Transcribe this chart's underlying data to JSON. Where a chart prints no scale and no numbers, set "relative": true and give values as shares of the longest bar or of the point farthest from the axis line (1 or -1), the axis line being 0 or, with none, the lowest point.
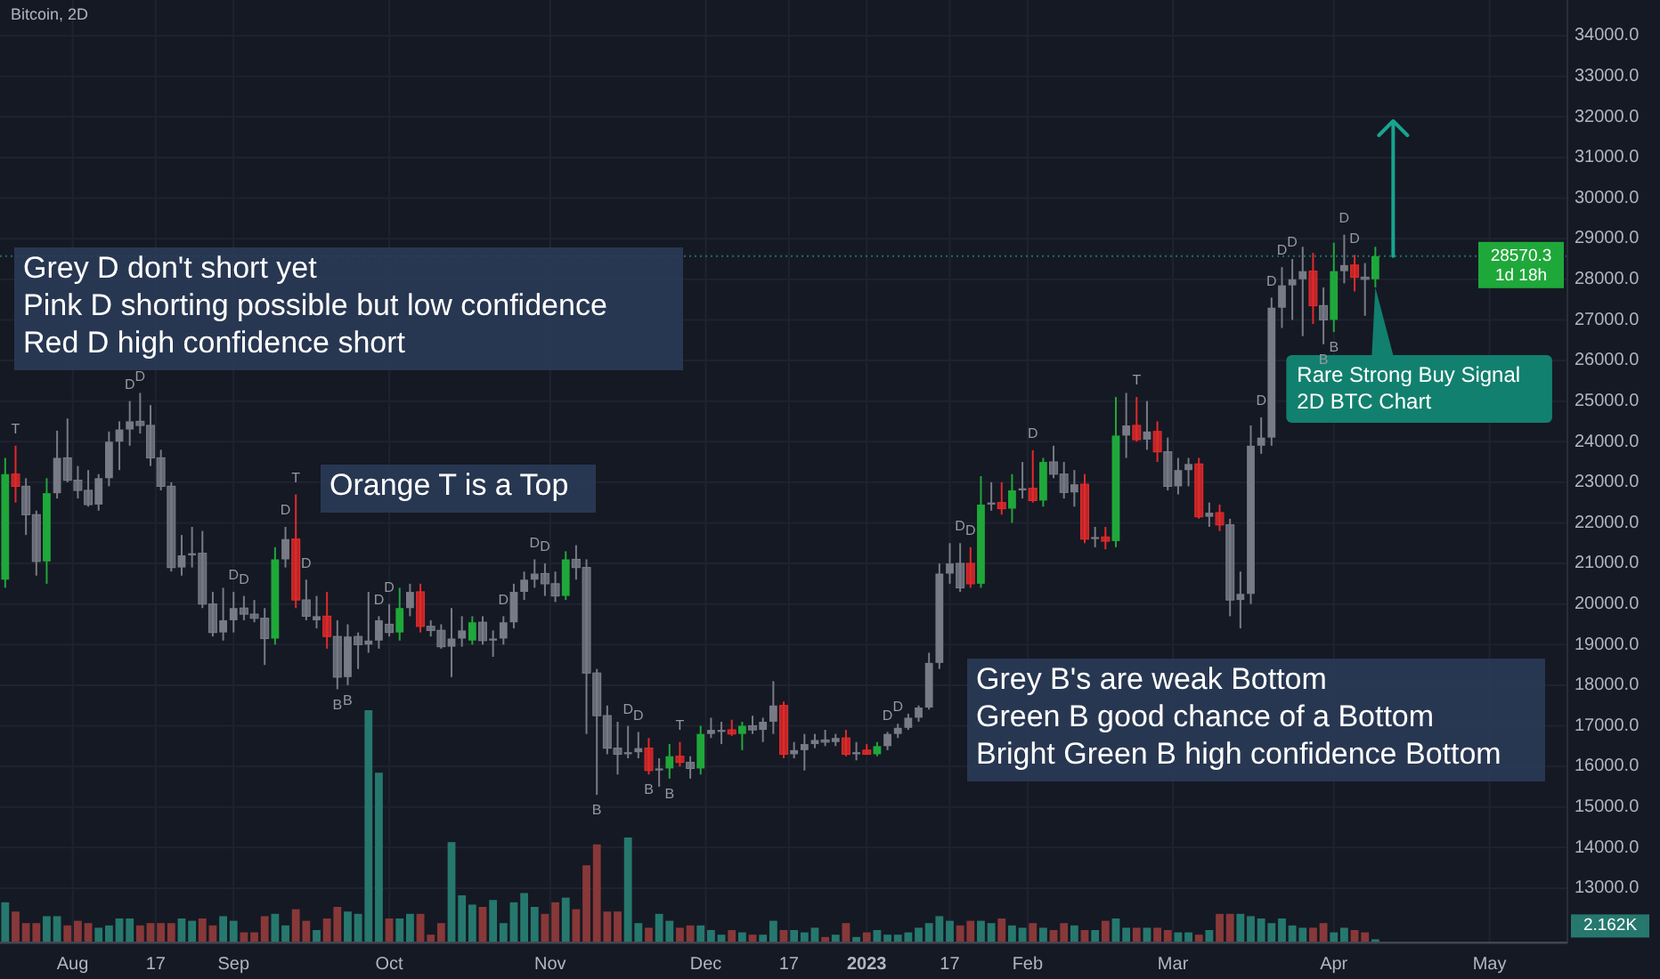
{
  "chart_data": [
    {
      "type": "candlestick",
      "title": "Bitcoin, 2D",
      "x": [
        "2022-07-19",
        "2022-07-21",
        "2022-07-23",
        "2022-07-25",
        "2022-07-27",
        "2022-07-29",
        "2022-07-31",
        "2022-08-02",
        "2022-08-04",
        "2022-08-06",
        "2022-08-08",
        "2022-08-10",
        "2022-08-12",
        "2022-08-14",
        "2022-08-16",
        "2022-08-18",
        "2022-08-20",
        "2022-08-22",
        "2022-08-24",
        "2022-08-26",
        "2022-08-28",
        "2022-08-30",
        "2022-09-01",
        "2022-09-03",
        "2022-09-05",
        "2022-09-07",
        "2022-09-09",
        "2022-09-11",
        "2022-09-13",
        "2022-09-15",
        "2022-09-17",
        "2022-09-19",
        "2022-09-21",
        "2022-09-23",
        "2022-09-25",
        "2022-09-27",
        "2022-09-29",
        "2022-10-01",
        "2022-10-03",
        "2022-10-05",
        "2022-10-07",
        "2022-10-09",
        "2022-10-11",
        "2022-10-13",
        "2022-10-15",
        "2022-10-17",
        "2022-10-19",
        "2022-10-21",
        "2022-10-23",
        "2022-10-25",
        "2022-10-27",
        "2022-10-29",
        "2022-10-31",
        "2022-11-02",
        "2022-11-04",
        "2022-11-06",
        "2022-11-08",
        "2022-11-10",
        "2022-11-12",
        "2022-11-14",
        "2022-11-16",
        "2022-11-18",
        "2022-11-20",
        "2022-11-22",
        "2022-11-24",
        "2022-11-26",
        "2022-11-28",
        "2022-11-30",
        "2022-12-02",
        "2022-12-04",
        "2022-12-06",
        "2022-12-08",
        "2022-12-10",
        "2022-12-12",
        "2022-12-14",
        "2022-12-16",
        "2022-12-18",
        "2022-12-20",
        "2022-12-22",
        "2022-12-24",
        "2022-12-26",
        "2022-12-28",
        "2022-12-30",
        "2023-01-01",
        "2023-01-03",
        "2023-01-05",
        "2023-01-07",
        "2023-01-09",
        "2023-01-11",
        "2023-01-13",
        "2023-01-15",
        "2023-01-17",
        "2023-01-19",
        "2023-01-21",
        "2023-01-23",
        "2023-01-25",
        "2023-01-27",
        "2023-01-29",
        "2023-01-31",
        "2023-02-02",
        "2023-02-04",
        "2023-02-06",
        "2023-02-08",
        "2023-02-10",
        "2023-02-12",
        "2023-02-14",
        "2023-02-16",
        "2023-02-18",
        "2023-02-20",
        "2023-02-22",
        "2023-02-24",
        "2023-02-26",
        "2023-02-28",
        "2023-03-02",
        "2023-03-04",
        "2023-03-06",
        "2023-03-08",
        "2023-03-10",
        "2023-03-12",
        "2023-03-14",
        "2023-03-16",
        "2023-03-18",
        "2023-03-20",
        "2023-03-22",
        "2023-03-24",
        "2023-03-26",
        "2023-03-28",
        "2023-03-30",
        "2023-04-01",
        "2023-04-03",
        "2023-04-05",
        "2023-04-07",
        "2023-04-09"
      ],
      "ohlc": [
        [
          20600,
          23600,
          20400,
          23200
        ],
        [
          23200,
          23900,
          22500,
          22900
        ],
        [
          22900,
          23100,
          21700,
          22200
        ],
        [
          22200,
          22300,
          20700,
          21050
        ],
        [
          21050,
          23100,
          20500,
          22730
        ],
        [
          22730,
          24270,
          22600,
          23600
        ],
        [
          23600,
          24570,
          23000,
          23050
        ],
        [
          23050,
          23400,
          22600,
          22800
        ],
        [
          22800,
          23300,
          22400,
          22450
        ],
        [
          22450,
          23200,
          22300,
          23100
        ],
        [
          23100,
          24250,
          22900,
          24000
        ],
        [
          24000,
          24500,
          23300,
          24300
        ],
        [
          24300,
          25000,
          23900,
          24500
        ],
        [
          24500,
          25200,
          24200,
          24400
        ],
        [
          24400,
          24900,
          23400,
          23600
        ],
        [
          23600,
          23800,
          22800,
          22900
        ],
        [
          22900,
          23000,
          20800,
          20900
        ],
        [
          20900,
          21700,
          20700,
          21200
        ],
        [
          21200,
          21900,
          20900,
          21250
        ],
        [
          21250,
          21800,
          19900,
          20000
        ],
        [
          20000,
          20300,
          19200,
          19300
        ],
        [
          19300,
          20400,
          19100,
          19600
        ],
        [
          19600,
          20300,
          19300,
          19900
        ],
        [
          19900,
          20200,
          19600,
          19750
        ],
        [
          19750,
          20100,
          19550,
          19650
        ],
        [
          19650,
          19900,
          18500,
          19150
        ],
        [
          19150,
          21400,
          19000,
          21100
        ],
        [
          21100,
          21900,
          20900,
          21600
        ],
        [
          21600,
          22700,
          19900,
          20100
        ],
        [
          20100,
          20600,
          19600,
          19700
        ],
        [
          19600,
          20200,
          19400,
          19700
        ],
        [
          19700,
          20300,
          18900,
          19200
        ],
        [
          19200,
          19600,
          17900,
          18200
        ],
        [
          18200,
          19500,
          18000,
          19200
        ],
        [
          19200,
          19300,
          18400,
          19000
        ],
        [
          19000,
          20300,
          18800,
          19100
        ],
        [
          19100,
          19700,
          18900,
          19600
        ],
        [
          19500,
          20000,
          19200,
          19300
        ],
        [
          19300,
          20400,
          19100,
          19900
        ],
        [
          19900,
          20500,
          19700,
          20300
        ],
        [
          20300,
          20500,
          19300,
          19450
        ],
        [
          19450,
          19600,
          19200,
          19350
        ],
        [
          19350,
          19500,
          18900,
          18950
        ],
        [
          18950,
          19900,
          18200,
          19150
        ],
        [
          19150,
          19700,
          18950,
          19350
        ],
        [
          19100,
          19700,
          19000,
          19550
        ],
        [
          19550,
          19700,
          19000,
          19100
        ],
        [
          19100,
          19350,
          18700,
          19150
        ],
        [
          19150,
          19700,
          19000,
          19550
        ],
        [
          19550,
          20500,
          19400,
          20300
        ],
        [
          20300,
          20800,
          20100,
          20600
        ],
        [
          20600,
          21100,
          20400,
          20750
        ],
        [
          20750,
          21000,
          20200,
          20500
        ],
        [
          20500,
          20800,
          20050,
          20200
        ],
        [
          20200,
          21300,
          20100,
          21100
        ],
        [
          21100,
          21450,
          20600,
          20900
        ],
        [
          20900,
          21100,
          16800,
          18300
        ],
        [
          18300,
          18400,
          15300,
          17250
        ],
        [
          17250,
          17500,
          16300,
          16450
        ],
        [
          16450,
          17100,
          15800,
          16300
        ],
        [
          16300,
          17000,
          16200,
          16350
        ],
        [
          16350,
          16850,
          16200,
          16450
        ],
        [
          16450,
          16700,
          15800,
          15900
        ],
        [
          15900,
          16200,
          15500,
          15950
        ],
        [
          15950,
          16550,
          15700,
          16250
        ],
        [
          16250,
          16600,
          16000,
          16100
        ],
        [
          16100,
          16250,
          15700,
          15950
        ],
        [
          15950,
          17000,
          15800,
          16800
        ],
        [
          16800,
          17200,
          16700,
          16900
        ],
        [
          16850,
          17100,
          16550,
          16900
        ],
        [
          16900,
          17150,
          16750,
          16800
        ],
        [
          16800,
          17100,
          16400,
          17000
        ],
        [
          17000,
          17250,
          16800,
          16900
        ],
        [
          16900,
          17200,
          16600,
          17100
        ],
        [
          17100,
          18100,
          16800,
          17500
        ],
        [
          17500,
          17600,
          16200,
          16300
        ],
        [
          16300,
          16600,
          16200,
          16400
        ],
        [
          16400,
          16800,
          15900,
          16550
        ],
        [
          16550,
          16800,
          16450,
          16650
        ],
        [
          16650,
          16900,
          16500,
          16600
        ],
        [
          16600,
          16800,
          16500,
          16700
        ],
        [
          16700,
          16900,
          16250,
          16300
        ],
        [
          16300,
          16600,
          16150,
          16350
        ],
        [
          16400,
          16550,
          16300,
          16300
        ],
        [
          16300,
          16600,
          16250,
          16500
        ],
        [
          16500,
          16850,
          16400,
          16800
        ],
        [
          16800,
          17050,
          16700,
          16950
        ],
        [
          16950,
          17300,
          16900,
          17200
        ],
        [
          17200,
          17500,
          17100,
          17450
        ],
        [
          17450,
          18800,
          17400,
          18550
        ],
        [
          18550,
          21000,
          18400,
          20750
        ],
        [
          20750,
          21500,
          20500,
          21000
        ],
        [
          21000,
          21500,
          20300,
          20400
        ],
        [
          21000,
          21400,
          20400,
          20500
        ],
        [
          20500,
          23150,
          20400,
          22450
        ],
        [
          22450,
          23000,
          22300,
          22500
        ],
        [
          22500,
          23000,
          22200,
          22350
        ],
        [
          22350,
          23200,
          22000,
          22800
        ],
        [
          22800,
          23500,
          22600,
          22850
        ],
        [
          22850,
          23790,
          22500,
          22550
        ],
        [
          22550,
          23600,
          22400,
          23500
        ],
        [
          23500,
          23900,
          23100,
          23200
        ],
        [
          23200,
          23500,
          22600,
          22750
        ],
        [
          22750,
          23300,
          22400,
          22950
        ],
        [
          22950,
          23200,
          21500,
          21600
        ],
        [
          21600,
          21900,
          21400,
          21650
        ],
        [
          21650,
          21900,
          21350,
          21550
        ],
        [
          21550,
          25100,
          21400,
          24150
        ],
        [
          24150,
          25200,
          23600,
          24400
        ],
        [
          24400,
          25100,
          24000,
          24050
        ],
        [
          24050,
          25000,
          23800,
          24250
        ],
        [
          24250,
          24500,
          23500,
          23750
        ],
        [
          23750,
          24100,
          22800,
          22900
        ],
        [
          22900,
          23600,
          22700,
          23300
        ],
        [
          23300,
          23600,
          22900,
          23450
        ],
        [
          23450,
          23600,
          22100,
          22150
        ],
        [
          22150,
          22500,
          21900,
          22250
        ],
        [
          22250,
          22450,
          21800,
          21950
        ],
        [
          21950,
          22100,
          19700,
          20100
        ],
        [
          20100,
          20800,
          19400,
          20250
        ],
        [
          20250,
          24400,
          20000,
          23900
        ],
        [
          23900,
          24600,
          23700,
          24100
        ],
        [
          24100,
          27550,
          23900,
          27300
        ],
        [
          27300,
          28300,
          26800,
          27850
        ],
        [
          27850,
          28500,
          27000,
          28000
        ],
        [
          28000,
          28800,
          26600,
          28200
        ],
        [
          28200,
          28650,
          26900,
          27350
        ],
        [
          27350,
          27800,
          26400,
          27000
        ],
        [
          27000,
          28900,
          26700,
          28200
        ],
        [
          28200,
          29100,
          27900,
          28350
        ],
        [
          28350,
          28600,
          27700,
          28050
        ],
        [
          28050,
          28400,
          27100,
          28000
        ],
        [
          28000,
          28800,
          27800,
          28570.3
        ]
      ],
      "colors": [
        "#1fa83a",
        "#e22a2a",
        "#787b86",
        "#787b86",
        "#1fa83a",
        "#787b86",
        "#787b86",
        "#787b86",
        "#787b86",
        "#787b86",
        "#787b86",
        "#787b86",
        "#787b86",
        "#787b86",
        "#787b86",
        "#787b86",
        "#787b86",
        "#787b86",
        "#787b86",
        "#787b86",
        "#787b86",
        "#787b86",
        "#787b86",
        "#787b86",
        "#787b86",
        "#787b86",
        "#1fa83a",
        "#787b86",
        "#e22a2a",
        "#787b86",
        "#787b86",
        "#e22a2a",
        "#787b86",
        "#787b86",
        "#787b86",
        "#787b86",
        "#787b86",
        "#787b86",
        "#1fa83a",
        "#787b86",
        "#e22a2a",
        "#787b86",
        "#787b86",
        "#787b86",
        "#787b86",
        "#1fa83a",
        "#787b86",
        "#787b86",
        "#787b86",
        "#787b86",
        "#787b86",
        "#787b86",
        "#787b86",
        "#787b86",
        "#1fa83a",
        "#787b86",
        "#787b86",
        "#787b86",
        "#787b86",
        "#787b86",
        "#787b86",
        "#787b86",
        "#e22a2a",
        "#787b86",
        "#1fa83a",
        "#e22a2a",
        "#787b86",
        "#1fa83a",
        "#787b86",
        "#787b86",
        "#e22a2a",
        "#1fa83a",
        "#787b86",
        "#787b86",
        "#787b86",
        "#e22a2a",
        "#787b86",
        "#787b86",
        "#787b86",
        "#787b86",
        "#787b86",
        "#e22a2a",
        "#787b86",
        "#e22a2a",
        "#1fa83a",
        "#787b86",
        "#787b86",
        "#787b86",
        "#787b86",
        "#787b86",
        "#787b86",
        "#787b86",
        "#787b86",
        "#e22a2a",
        "#1fa83a",
        "#787b86",
        "#e22a2a",
        "#1fa83a",
        "#787b86",
        "#e22a2a",
        "#1fa83a",
        "#787b86",
        "#787b86",
        "#787b86",
        "#e22a2a",
        "#787b86",
        "#e22a2a",
        "#1fa83a",
        "#787b86",
        "#e22a2a",
        "#787b86",
        "#e22a2a",
        "#787b86",
        "#787b86",
        "#787b86",
        "#e22a2a",
        "#787b86",
        "#e22a2a",
        "#787b86",
        "#787b86",
        "#787b86",
        "#787b86",
        "#787b86",
        "#787b86",
        "#787b86",
        "#787b86",
        "#e22a2a",
        "#787b86",
        "#1fa83a",
        "#787b86",
        "#e22a2a",
        "#787b86",
        "#1fa83a"
      ],
      "xlim": [
        "2022-07-18",
        "2023-05-16"
      ],
      "xticks": [
        {
          "value": "2022-08-01",
          "label": "Aug"
        },
        {
          "value": "2022-08-17",
          "label": "17"
        },
        {
          "value": "2022-09-01",
          "label": "Sep"
        },
        {
          "value": "2022-10-01",
          "label": "Oct"
        },
        {
          "value": "2022-11-01",
          "label": "Nov"
        },
        {
          "value": "2022-12-01",
          "label": "Dec"
        },
        {
          "value": "2022-12-17",
          "label": "17"
        },
        {
          "value": "2023-01-01",
          "label": "2023"
        },
        {
          "value": "2023-01-17",
          "label": "17"
        },
        {
          "value": "2023-02-01",
          "label": "Feb"
        },
        {
          "value": "2023-03-01",
          "label": "Mar"
        },
        {
          "value": "2023-04-01",
          "label": "Apr"
        },
        {
          "value": "2023-05-01",
          "label": "May"
        }
      ],
      "ylim": [
        11640,
        34880
      ],
      "yticks": [
        {
          "value": 13000,
          "label": "13000.0"
        },
        {
          "value": 14000,
          "label": "14000.0"
        },
        {
          "value": 15000,
          "label": "15000.0"
        },
        {
          "value": 16000,
          "label": "16000.0"
        },
        {
          "value": 17000,
          "label": "17000.0"
        },
        {
          "value": 18000,
          "label": "18000.0"
        },
        {
          "value": 19000,
          "label": "19000.0"
        },
        {
          "value": 20000,
          "label": "20000.0"
        },
        {
          "value": 21000,
          "label": "21000.0"
        },
        {
          "value": 22000,
          "label": "22000.0"
        },
        {
          "value": 23000,
          "label": "23000.0"
        },
        {
          "value": 24000,
          "label": "24000.0"
        },
        {
          "value": 25000,
          "label": "25000.0"
        },
        {
          "value": 26000,
          "label": "26000.0"
        },
        {
          "value": 27000,
          "label": "27000.0"
        },
        {
          "value": 28000,
          "label": "28000.0"
        },
        {
          "value": 29000,
          "label": "29000.0"
        },
        {
          "value": 30000,
          "label": "30000.0"
        },
        {
          "value": 31000,
          "label": "31000.0"
        },
        {
          "value": 32000,
          "label": "32000.0"
        },
        {
          "value": 33000,
          "label": "33000.0"
        },
        {
          "value": 34000,
          "label": "34000.0"
        }
      ],
      "grid": true,
      "ref_lines": [
        {
          "axis": "y",
          "value": 28570.3,
          "label": "28570.3",
          "color": "#26a69a",
          "line_style": "dotted"
        }
      ],
      "annotations": [
        "Grey D don't short yet\nPink D shorting possible but low confidence\nRed D high confidence short",
        "Orange T is a Top",
        "Grey B's are weak Bottom\nGreen B good chance of a Bottom\nBright Green B high confidence Bottom",
        "1d 18h",
        {
          "text": "Rare Strong Buy Signal\n2D BTC Chart",
          "x": "2023-04-09",
          "y": 27800
        },
        {
          "text": "T",
          "x": "2022-07-21",
          "y": 23900
        },
        {
          "text": "D",
          "x": "2022-08-12",
          "y": 25000
        },
        {
          "text": "D",
          "x": "2022-08-14",
          "y": 25200
        },
        {
          "text": "D",
          "x": "2022-09-01",
          "y": 20300
        },
        {
          "text": "D",
          "x": "2022-09-03",
          "y": 20200
        },
        {
          "text": "D",
          "x": "2022-09-11",
          "y": 21900
        },
        {
          "text": "T",
          "x": "2022-09-13",
          "y": 22700
        },
        {
          "text": "D",
          "x": "2022-09-15",
          "y": 20600
        },
        {
          "text": "B",
          "x": "2022-09-21",
          "y": 17900
        },
        {
          "text": "B",
          "x": "2022-09-23",
          "y": 18000
        },
        {
          "text": "D",
          "x": "2022-09-29",
          "y": 19700
        },
        {
          "text": "D",
          "x": "2022-10-01",
          "y": 20000
        },
        {
          "text": "D",
          "x": "2022-10-23",
          "y": 19700
        },
        {
          "text": "D",
          "x": "2022-10-29",
          "y": 21100
        },
        {
          "text": "D",
          "x": "2022-10-31",
          "y": 21000
        },
        {
          "text": "B",
          "x": "2022-11-10",
          "y": 15300
        },
        {
          "text": "D",
          "x": "2022-11-16",
          "y": 17000
        },
        {
          "text": "D",
          "x": "2022-11-18",
          "y": 16850
        },
        {
          "text": "B",
          "x": "2022-11-20",
          "y": 15800
        },
        {
          "text": "B",
          "x": "2022-11-24",
          "y": 15700
        },
        {
          "text": "T",
          "x": "2022-11-26",
          "y": 16600
        },
        {
          "text": "D",
          "x": "2023-01-05",
          "y": 16850
        },
        {
          "text": "D",
          "x": "2023-01-07",
          "y": 17050
        },
        {
          "text": "D",
          "x": "2023-01-19",
          "y": 21500
        },
        {
          "text": "D",
          "x": "2023-01-21",
          "y": 21400
        },
        {
          "text": "D",
          "x": "2023-02-02",
          "y": 23790
        },
        {
          "text": "T",
          "x": "2023-02-22",
          "y": 25100
        },
        {
          "text": "D",
          "x": "2023-03-18",
          "y": 24600
        },
        {
          "text": "D",
          "x": "2023-03-20",
          "y": 27550
        },
        {
          "text": "D",
          "x": "2023-03-22",
          "y": 28300
        },
        {
          "text": "D",
          "x": "2023-03-24",
          "y": 28500
        },
        {
          "text": "B",
          "x": "2023-03-30",
          "y": 26400
        },
        {
          "text": "B",
          "x": "2023-04-01",
          "y": 26700
        },
        {
          "text": "D",
          "x": "2023-04-03",
          "y": 29100
        },
        {
          "text": "D",
          "x": "2023-04-05",
          "y": 28600
        }
      ]
    },
    {
      "type": "bar",
      "relative": true,
      "x": [
        "2022-07-19",
        "2022-07-21",
        "2022-07-23",
        "2022-07-25",
        "2022-07-27",
        "2022-07-29",
        "2022-07-31",
        "2022-08-02",
        "2022-08-04",
        "2022-08-06",
        "2022-08-08",
        "2022-08-10",
        "2022-08-12",
        "2022-08-14",
        "2022-08-16",
        "2022-08-18",
        "2022-08-20",
        "2022-08-22",
        "2022-08-24",
        "2022-08-26",
        "2022-08-28",
        "2022-08-30",
        "2022-09-01",
        "2022-09-03",
        "2022-09-05",
        "2022-09-07",
        "2022-09-09",
        "2022-09-11",
        "2022-09-13",
        "2022-09-15",
        "2022-09-17",
        "2022-09-19",
        "2022-09-21",
        "2022-09-23",
        "2022-09-25",
        "2022-09-27",
        "2022-09-29",
        "2022-10-01",
        "2022-10-03",
        "2022-10-05",
        "2022-10-07",
        "2022-10-09",
        "2022-10-11",
        "2022-10-13",
        "2022-10-15",
        "2022-10-17",
        "2022-10-19",
        "2022-10-21",
        "2022-10-23",
        "2022-10-25",
        "2022-10-27",
        "2022-10-29",
        "2022-10-31",
        "2022-11-02",
        "2022-11-04",
        "2022-11-06",
        "2022-11-08",
        "2022-11-10",
        "2022-11-12",
        "2022-11-14",
        "2022-11-16",
        "2022-11-18",
        "2022-11-20",
        "2022-11-22",
        "2022-11-24",
        "2022-11-26",
        "2022-11-28",
        "2022-11-30",
        "2022-12-02",
        "2022-12-04",
        "2022-12-06",
        "2022-12-08",
        "2022-12-10",
        "2022-12-12",
        "2022-12-14",
        "2022-12-16",
        "2022-12-18",
        "2022-12-20",
        "2022-12-22",
        "2022-12-24",
        "2022-12-26",
        "2022-12-28",
        "2022-12-30",
        "2023-01-01",
        "2023-01-03",
        "2023-01-05",
        "2023-01-07",
        "2023-01-09",
        "2023-01-11",
        "2023-01-13",
        "2023-01-15",
        "2023-01-17",
        "2023-01-19",
        "2023-01-21",
        "2023-01-23",
        "2023-01-25",
        "2023-01-27",
        "2023-01-29",
        "2023-01-31",
        "2023-02-02",
        "2023-02-04",
        "2023-02-06",
        "2023-02-08",
        "2023-02-10",
        "2023-02-12",
        "2023-02-14",
        "2023-02-16",
        "2023-02-18",
        "2023-02-20",
        "2023-02-22",
        "2023-02-24",
        "2023-02-26",
        "2023-02-28",
        "2023-03-02",
        "2023-03-04",
        "2023-03-06",
        "2023-03-08",
        "2023-03-10",
        "2023-03-12",
        "2023-03-14",
        "2023-03-16",
        "2023-03-18",
        "2023-03-20",
        "2023-03-22",
        "2023-03-24",
        "2023-03-26",
        "2023-03-28",
        "2023-03-30",
        "2023-04-01",
        "2023-04-03",
        "2023-04-05",
        "2023-04-07",
        "2023-04-09"
      ],
      "xlim": [
        "2022-07-18",
        "2023-05-16"
      ],
      "values": [
        0.17,
        0.13,
        0.08,
        0.08,
        0.11,
        0.11,
        0.07,
        0.09,
        0.08,
        0.06,
        0.07,
        0.1,
        0.1,
        0.07,
        0.08,
        0.08,
        0.08,
        0.1,
        0.09,
        0.1,
        0.07,
        0.11,
        0.09,
        0.04,
        0.04,
        0.11,
        0.12,
        0.07,
        0.14,
        0.09,
        0.05,
        0.1,
        0.15,
        0.13,
        0.12,
        1,
        0.73,
        0.1,
        0.1,
        0.12,
        0.12,
        0.03,
        0.08,
        0.43,
        0.2,
        0.16,
        0.15,
        0.18,
        0.08,
        0.17,
        0.21,
        0.15,
        0.12,
        0.17,
        0.19,
        0.14,
        0.33,
        0.42,
        0.13,
        0.13,
        0.45,
        0.08,
        0.06,
        0.12,
        0.09,
        0.06,
        0.07,
        0.07,
        0.05,
        0.03,
        0.05,
        0.04,
        0.03,
        0.03,
        0.09,
        0.05,
        0.05,
        0.04,
        0.06,
        0.02,
        0.03,
        0.08,
        0.02,
        0.04,
        0.05,
        0.03,
        0.03,
        0.04,
        0.06,
        0.08,
        0.11,
        0.09,
        0.07,
        0.09,
        0.09,
        0.08,
        0.1,
        0.07,
        0.06,
        0.08,
        0.06,
        0.05,
        0.08,
        0.07,
        0.05,
        0.05,
        0.09,
        0.1,
        0.06,
        0.06,
        0.06,
        0.06,
        0.05,
        0.04,
        0.04,
        0.03,
        0.05,
        0.12,
        0.12,
        0.12,
        0.11,
        0.1,
        0.08,
        0.1,
        0.07,
        0.06,
        0.06,
        0.08,
        0.04,
        0.06,
        0.05,
        0.04,
        0.01
      ],
      "colors": [
        "#26786e",
        "#883838",
        "#883838",
        "#883838",
        "#26786e",
        "#26786e",
        "#883838",
        "#883838",
        "#883838",
        "#26786e",
        "#26786e",
        "#26786e",
        "#26786e",
        "#883838",
        "#883838",
        "#883838",
        "#883838",
        "#26786e",
        "#26786e",
        "#883838",
        "#883838",
        "#26786e",
        "#26786e",
        "#883838",
        "#883838",
        "#883838",
        "#26786e",
        "#26786e",
        "#883838",
        "#883838",
        "#26786e",
        "#883838",
        "#883838",
        "#26786e",
        "#26786e",
        "#26786e",
        "#26786e",
        "#883838",
        "#26786e",
        "#26786e",
        "#883838",
        "#883838",
        "#883838",
        "#26786e",
        "#26786e",
        "#26786e",
        "#883838",
        "#26786e",
        "#26786e",
        "#26786e",
        "#26786e",
        "#26786e",
        "#883838",
        "#883838",
        "#26786e",
        "#883838",
        "#883838",
        "#883838",
        "#883838",
        "#883838",
        "#26786e",
        "#26786e",
        "#883838",
        "#26786e",
        "#26786e",
        "#883838",
        "#883838",
        "#26786e",
        "#26786e",
        "#26786e",
        "#883838",
        "#26786e",
        "#883838",
        "#26786e",
        "#26786e",
        "#883838",
        "#26786e",
        "#26786e",
        "#26786e",
        "#883838",
        "#26786e",
        "#883838",
        "#26786e",
        "#883838",
        "#26786e",
        "#26786e",
        "#26786e",
        "#26786e",
        "#26786e",
        "#26786e",
        "#26786e",
        "#26786e",
        "#883838",
        "#883838",
        "#26786e",
        "#26786e",
        "#883838",
        "#26786e",
        "#26786e",
        "#883838",
        "#26786e",
        "#883838",
        "#883838",
        "#26786e",
        "#883838",
        "#26786e",
        "#883838",
        "#26786e",
        "#26786e",
        "#883838",
        "#26786e",
        "#883838",
        "#883838",
        "#26786e",
        "#26786e",
        "#883838",
        "#26786e",
        "#883838",
        "#883838",
        "#26786e",
        "#26786e",
        "#26786e",
        "#26786e",
        "#26786e",
        "#26786e",
        "#26786e",
        "#883838",
        "#883838",
        "#26786e",
        "#26786e",
        "#883838",
        "#883838",
        "#26786e"
      ],
      "annotations": [
        "2.162K"
      ]
    }
  ]
}
